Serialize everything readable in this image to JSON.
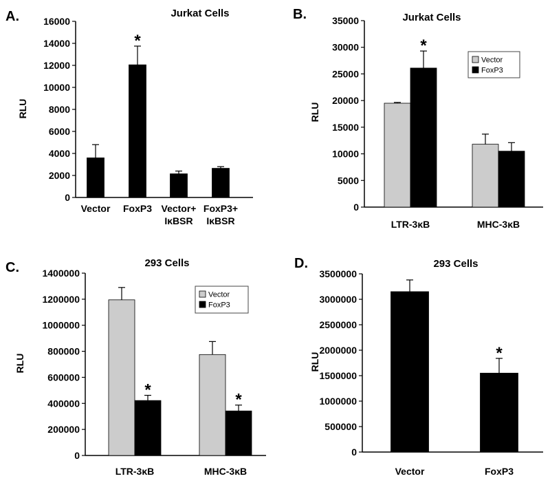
{
  "figure": {
    "panels": [
      {
        "id": "A",
        "panel_label": "A.",
        "chart_data": {
          "type": "bar",
          "title": "Jurkat Cells",
          "ylabel": "RLU",
          "xlabel": "",
          "ylim": [
            0,
            16000
          ],
          "yticks": [
            0,
            2000,
            4000,
            6000,
            8000,
            10000,
            12000,
            14000,
            16000
          ],
          "ytick_labels": [
            "0",
            "2000",
            "4000",
            "6000",
            "8000",
            "10000",
            "12000",
            "14000",
            "16000"
          ],
          "categories": [
            [
              "Vector"
            ],
            [
              "FoxP3"
            ],
            [
              "Vector+",
              "IκBSR"
            ],
            [
              "FoxP3+",
              "IκBSR"
            ]
          ],
          "series": [
            {
              "name": "",
              "color": "#000000",
              "values": [
                3600,
                12050,
                2150,
                2650
              ],
              "errors": [
                1200,
                1700,
                250,
                150
              ]
            }
          ],
          "significance": [
            [
              "",
              "*",
              "",
              ""
            ]
          ],
          "legend": null
        }
      },
      {
        "id": "B",
        "panel_label": "B.",
        "chart_data": {
          "type": "bar",
          "title": "Jurkat Cells",
          "ylabel": "RLU",
          "xlabel": "",
          "ylim": [
            0,
            35000
          ],
          "yticks": [
            0,
            5000,
            10000,
            15000,
            20000,
            25000,
            30000,
            35000
          ],
          "ytick_labels": [
            "0",
            "5000",
            "10000",
            "15000",
            "20000",
            "25000",
            "30000",
            "35000"
          ],
          "categories": [
            [
              "LTR-3κB"
            ],
            [
              "MHC-3κB"
            ]
          ],
          "series": [
            {
              "name": "Vector",
              "color": "#cccccc",
              "values": [
                19500,
                11800
              ],
              "errors": [
                150,
                1900
              ]
            },
            {
              "name": "FoxP3",
              "color": "#000000",
              "values": [
                26100,
                10500
              ],
              "errors": [
                3200,
                1600
              ]
            }
          ],
          "significance": [
            [
              "",
              ""
            ],
            [
              "*",
              ""
            ]
          ],
          "legend": {
            "position": "top-right",
            "entries": [
              "Vector",
              "FoxP3"
            ]
          }
        }
      },
      {
        "id": "C",
        "panel_label": "C.",
        "chart_data": {
          "type": "bar",
          "title": "293 Cells",
          "ylabel": "RLU",
          "xlabel": "",
          "ylim": [
            0,
            1400000
          ],
          "yticks": [
            0,
            200000,
            400000,
            600000,
            800000,
            1000000,
            1200000,
            1400000
          ],
          "ytick_labels": [
            "0",
            "200000",
            "400000",
            "600000",
            "800000",
            "1000000",
            "1200000",
            "1400000"
          ],
          "categories": [
            [
              "LTR-3κB"
            ],
            [
              "MHC-3κB"
            ]
          ],
          "series": [
            {
              "name": "Vector",
              "color": "#cccccc",
              "values": [
                1195000,
                775000
              ],
              "errors": [
                95000,
                100000
              ]
            },
            {
              "name": "FoxP3",
              "color": "#000000",
              "values": [
                422000,
                342000
              ],
              "errors": [
                40000,
                45000
              ]
            }
          ],
          "significance": [
            [
              "",
              ""
            ],
            [
              "*",
              "*"
            ]
          ],
          "legend": {
            "position": "top-right",
            "entries": [
              "Vector",
              "FoxP3"
            ]
          }
        }
      },
      {
        "id": "D",
        "panel_label": "D.",
        "chart_data": {
          "type": "bar",
          "title": "293 Cells",
          "ylabel": "RLU",
          "xlabel": "",
          "ylim": [
            0,
            3500000
          ],
          "yticks": [
            0,
            500000,
            1000000,
            1500000,
            2000000,
            2500000,
            3000000,
            3500000
          ],
          "ytick_labels": [
            "0",
            "500000",
            "1000000",
            "1500000",
            "2000000",
            "2500000",
            "3000000",
            "3500000"
          ],
          "categories": [
            [
              "Vector"
            ],
            [
              "FoxP3"
            ]
          ],
          "series": [
            {
              "name": "",
              "color": "#000000",
              "values": [
                3150000,
                1550000
              ],
              "errors": [
                230000,
                290000
              ]
            }
          ],
          "significance": [
            [
              "",
              "*"
            ]
          ],
          "legend": null
        }
      }
    ]
  }
}
